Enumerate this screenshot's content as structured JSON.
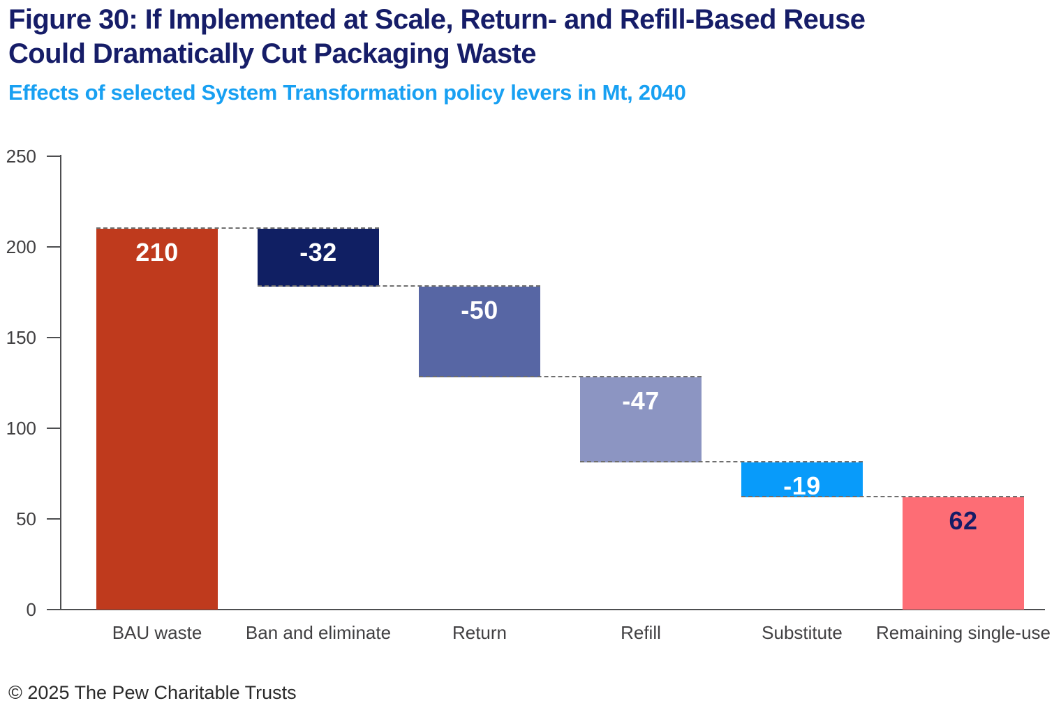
{
  "header": {
    "title_line1": "Figure 30: If Implemented at Scale, Return- and Refill-Based Reuse",
    "title_line2": "Could Dramatically Cut Packaging Waste",
    "subtitle": "Effects of selected System Transformation policy levers in Mt, 2040",
    "title_color": "#161d68",
    "subtitle_color": "#18a0f2"
  },
  "chart_data": {
    "type": "waterfall",
    "title": "Figure 30: If Implemented at Scale, Return- and Refill-Based Reuse Could Dramatically Cut Packaging Waste",
    "subtitle": "Effects of selected System Transformation policy levers in Mt, 2040",
    "unit": "Mt",
    "year": "2040",
    "y_axis": {
      "min": 0,
      "max": 250,
      "ticks": [
        250,
        200,
        150,
        100,
        50,
        0
      ]
    },
    "grid": "off",
    "bars": [
      {
        "category": "BAU waste",
        "label": "210",
        "value": 210,
        "from": 0,
        "to": 210,
        "color": "#bf3a1d",
        "label_color": "#ffffff"
      },
      {
        "category": "Ban and eliminate",
        "label": "-32",
        "value": -32,
        "from": 210,
        "to": 178,
        "color": "#101f63",
        "label_color": "#ffffff"
      },
      {
        "category": "Return",
        "label": "-50",
        "value": -50,
        "from": 178,
        "to": 128,
        "color": "#5766a4",
        "label_color": "#ffffff"
      },
      {
        "category": "Refill",
        "label": "-47",
        "value": -47,
        "from": 128,
        "to": 81,
        "color": "#8c95c2",
        "label_color": "#ffffff"
      },
      {
        "category": "Substitute",
        "label": "-19",
        "value": -19,
        "from": 81,
        "to": 62,
        "color": "#089bfa",
        "label_color": "#ffffff"
      },
      {
        "category": "Remaining single-use",
        "label": "62",
        "value": 62,
        "from": 62,
        "to": 0,
        "color": "#fd6d75",
        "label_color": "#151c66"
      }
    ],
    "connectors": [
      {
        "level": 210,
        "from": 0,
        "to": 1
      },
      {
        "level": 178,
        "from": 1,
        "to": 2
      },
      {
        "level": 128,
        "from": 2,
        "to": 3
      },
      {
        "level": 81,
        "from": 3,
        "to": 4
      },
      {
        "level": 62,
        "from": 4,
        "to": 5
      }
    ]
  },
  "footer": {
    "copyright": "© 2025 The Pew Charitable Trusts"
  }
}
